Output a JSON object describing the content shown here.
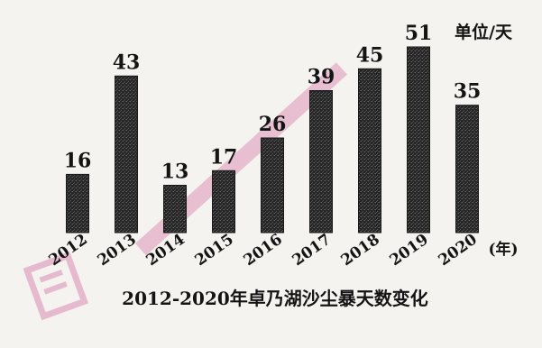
{
  "chart_data": {
    "type": "bar",
    "title": "2012-2020年卓乃湖沙尘暴天数变化",
    "unit_label": "单位/天",
    "x_unit_label": "(年)",
    "categories": [
      "2012",
      "2013",
      "2014",
      "2015",
      "2016",
      "2017",
      "2018",
      "2019",
      "2020"
    ],
    "values": [
      16,
      43,
      13,
      17,
      26,
      39,
      45,
      51,
      35
    ],
    "ylim": [
      0,
      52
    ],
    "bar_color": "#1b1b1b",
    "grid": false,
    "legend": "none",
    "data_labels": true
  }
}
